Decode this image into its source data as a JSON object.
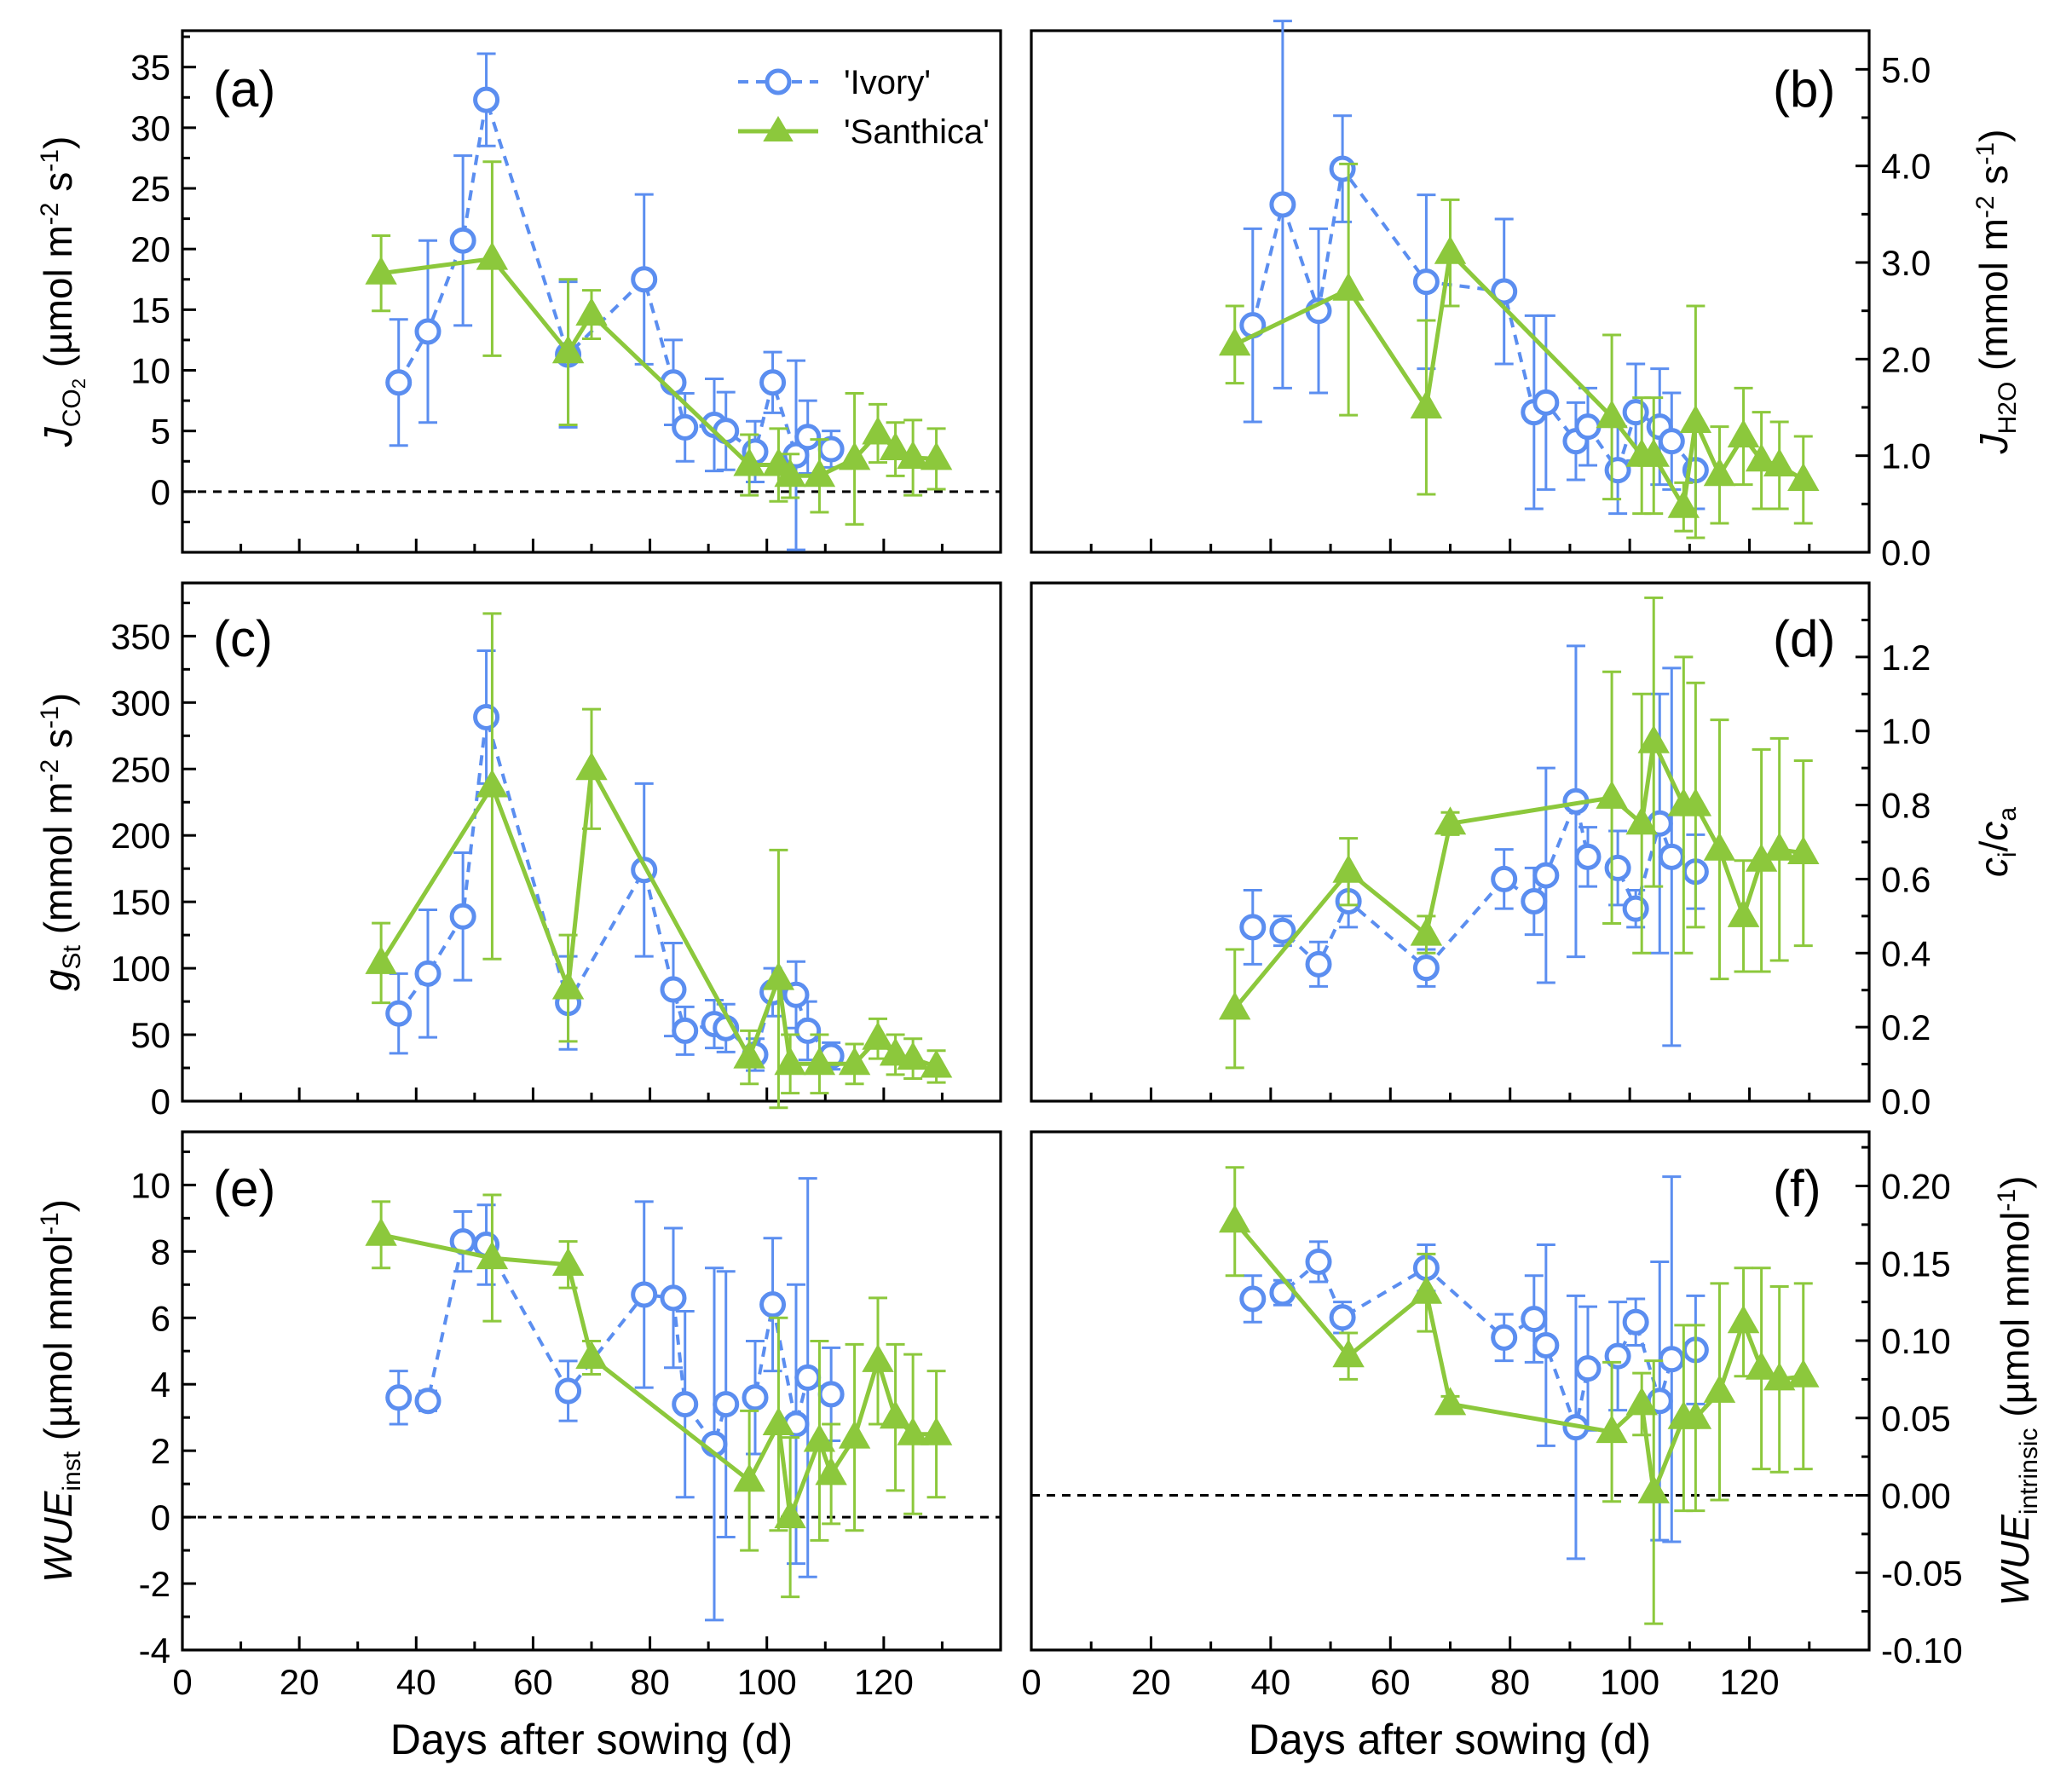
{
  "colors": {
    "ivory": "#5b8ef0",
    "santhica": "#8cc83c",
    "axis": "#000000"
  },
  "legend": {
    "ivory_label": "'Ivory'",
    "santhica_label": "'Santhica'"
  },
  "x_axis": {
    "label": "Days after sowing (d)",
    "range": [
      0,
      140
    ],
    "major_ticks": [
      0,
      20,
      40,
      60,
      80,
      100,
      120
    ]
  },
  "chart_data": [
    {
      "panel": "(a)",
      "type": "line",
      "ylabel": "J_CO2 (µmol m-2 s-1)",
      "yaxis_side": "left",
      "ylim": [
        -5,
        38
      ],
      "yticks": [
        0,
        5,
        10,
        15,
        20,
        25,
        30,
        35
      ],
      "zero_line": true,
      "series": [
        {
          "name": "'Ivory'",
          "x": [
            37,
            42,
            48,
            52,
            66,
            79,
            84,
            86,
            91,
            93,
            98,
            101,
            105,
            107,
            111
          ],
          "values": [
            9,
            13.2,
            20.7,
            32.3,
            11.3,
            17.5,
            9,
            5.3,
            5.5,
            5,
            3.3,
            9,
            3,
            4.5,
            3.5
          ],
          "errors": [
            5.2,
            7.5,
            7,
            3.8,
            6,
            7,
            3.5,
            2.8,
            3.8,
            3.2,
            2.5,
            2.5,
            7.8,
            3,
            1.5
          ]
        },
        {
          "name": "'Santhica'",
          "x": [
            34,
            53,
            66,
            70,
            97,
            102,
            104,
            109,
            115,
            119,
            122,
            125,
            129
          ],
          "values": [
            18,
            19.2,
            11.5,
            14.6,
            2.2,
            2.2,
            1.3,
            1.3,
            2.7,
            4.8,
            3.5,
            2.8,
            2.7
          ],
          "errors": [
            3.1,
            8,
            6,
            2,
            2.5,
            3,
            1.8,
            3,
            5.4,
            2.4,
            2.2,
            3.1,
            2.5
          ]
        }
      ]
    },
    {
      "panel": "(b)",
      "type": "line",
      "ylabel": "J_H2O (mmol m-2 s-1)",
      "yaxis_side": "right",
      "ylim": [
        0,
        5.4
      ],
      "yticks": [
        0.0,
        1.0,
        2.0,
        3.0,
        4.0,
        5.0
      ],
      "tick_decimals": 1,
      "series": [
        {
          "name": "'Ivory'",
          "x": [
            37,
            42,
            48,
            52,
            66,
            79,
            84,
            86,
            91,
            93,
            98,
            101,
            105,
            107,
            111
          ],
          "values": [
            2.35,
            3.6,
            2.5,
            3.97,
            2.8,
            2.7,
            1.45,
            1.55,
            1.15,
            1.3,
            0.85,
            1.45,
            1.3,
            1.15,
            0.85
          ],
          "errors": [
            1.0,
            1.9,
            0.85,
            0.55,
            0.9,
            0.75,
            1.0,
            0.9,
            0.4,
            0.4,
            0.45,
            0.5,
            0.6,
            0.5,
            0.4
          ]
        },
        {
          "name": "'Santhica'",
          "x": [
            34,
            53,
            66,
            70,
            97,
            102,
            104,
            109,
            111,
            115,
            119,
            122,
            125,
            129
          ],
          "values": [
            2.15,
            2.72,
            1.5,
            3.1,
            1.4,
            1.0,
            1.0,
            0.47,
            1.35,
            0.8,
            1.2,
            0.95,
            0.9,
            0.75
          ],
          "errors": [
            0.4,
            1.3,
            0.9,
            0.55,
            0.85,
            0.6,
            0.6,
            0.25,
            1.2,
            0.5,
            0.5,
            0.5,
            0.45,
            0.45
          ]
        }
      ]
    },
    {
      "panel": "(c)",
      "type": "line",
      "ylabel": "g_St (mmol m-2 s-1)",
      "yaxis_side": "left",
      "ylim": [
        0,
        390
      ],
      "yticks": [
        0,
        50,
        100,
        150,
        200,
        250,
        300,
        350
      ],
      "series": [
        {
          "name": "'Ivory'",
          "x": [
            37,
            42,
            48,
            52,
            66,
            79,
            84,
            86,
            91,
            93,
            98,
            101,
            105,
            107,
            111
          ],
          "values": [
            66,
            96,
            139,
            289,
            74,
            174,
            84,
            53,
            58,
            55,
            35,
            82,
            80,
            53,
            34
          ],
          "errors": [
            30,
            48,
            48,
            50,
            35,
            65,
            35,
            18,
            18,
            18,
            12,
            18,
            25,
            22,
            10
          ]
        },
        {
          "name": "'Santhica'",
          "x": [
            34,
            53,
            66,
            70,
            97,
            102,
            104,
            109,
            115,
            119,
            122,
            125,
            129
          ],
          "values": [
            104,
            237,
            85,
            250,
            33,
            92,
            28,
            28,
            28,
            47,
            35,
            32,
            26
          ],
          "errors": [
            30,
            130,
            40,
            45,
            20,
            97,
            22,
            22,
            15,
            15,
            15,
            15,
            12
          ]
        }
      ]
    },
    {
      "panel": "(d)",
      "type": "line",
      "ylabel": "ci/ca",
      "yaxis_side": "right",
      "ylim": [
        0,
        1.4
      ],
      "yticks": [
        0.0,
        0.2,
        0.4,
        0.6,
        0.8,
        1.0,
        1.2
      ],
      "tick_decimals": 1,
      "series": [
        {
          "name": "'Ivory'",
          "x": [
            37,
            42,
            48,
            53,
            66,
            79,
            84,
            86,
            91,
            93,
            98,
            101,
            105,
            107,
            111
          ],
          "values": [
            0.47,
            0.46,
            0.37,
            0.54,
            0.36,
            0.6,
            0.54,
            0.61,
            0.81,
            0.66,
            0.63,
            0.52,
            0.75,
            0.66,
            0.62
          ],
          "errors": [
            0.1,
            0.04,
            0.06,
            0.07,
            0.05,
            0.08,
            0.09,
            0.29,
            0.42,
            0.08,
            0.1,
            0.05,
            0.35,
            0.51,
            0.1
          ]
        },
        {
          "name": "'Santhica'",
          "x": [
            34,
            53,
            66,
            70,
            97,
            102,
            104,
            109,
            111,
            115,
            119,
            122,
            125,
            129
          ],
          "values": [
            0.25,
            0.62,
            0.45,
            0.75,
            0.82,
            0.75,
            0.97,
            0.8,
            0.8,
            0.68,
            0.5,
            0.65,
            0.68,
            0.67
          ],
          "errors": [
            0.16,
            0.09,
            0.05,
            0.03,
            0.34,
            0.35,
            0.39,
            0.4,
            0.33,
            0.35,
            0.15,
            0.3,
            0.3,
            0.25
          ]
        }
      ]
    },
    {
      "panel": "(e)",
      "type": "line",
      "ylabel": "WUE_inst (µmol mmol-1)",
      "yaxis_side": "left",
      "ylim": [
        -4,
        11.6
      ],
      "yticks": [
        -4,
        -2,
        0,
        2,
        4,
        6,
        8,
        10
      ],
      "zero_line": true,
      "series": [
        {
          "name": "'Ivory'",
          "x": [
            37,
            42,
            48,
            52,
            66,
            79,
            84,
            86,
            91,
            93,
            98,
            101,
            105,
            107,
            111
          ],
          "values": [
            3.6,
            3.5,
            8.3,
            8.2,
            3.8,
            6.7,
            6.6,
            3.4,
            2.2,
            3.4,
            3.6,
            6.4,
            2.8,
            4.2,
            3.7
          ],
          "errors": [
            0.8,
            0.3,
            0.9,
            1.2,
            0.9,
            2.8,
            2.1,
            2.8,
            5.3,
            4,
            1.7,
            2,
            4.2,
            6,
            1.4
          ]
        },
        {
          "name": "'Santhica'",
          "x": [
            34,
            53,
            66,
            70,
            97,
            102,
            104,
            109,
            111,
            115,
            119,
            122,
            125,
            129
          ],
          "values": [
            8.5,
            7.8,
            7.6,
            4.8,
            1.1,
            2.8,
            0,
            2.3,
            1.3,
            2.4,
            4.7,
            3,
            2.5,
            2.5
          ],
          "errors": [
            1,
            1.9,
            0.7,
            0.5,
            2.1,
            3.2,
            2.4,
            3,
            1.5,
            2.8,
            1.9,
            2.2,
            2.4,
            1.9
          ]
        }
      ]
    },
    {
      "panel": "(f)",
      "type": "line",
      "ylabel": "WUE_intrinsic (µmol mmol-1)",
      "yaxis_side": "right",
      "ylim": [
        -0.1,
        0.235
      ],
      "yticks": [
        -0.1,
        -0.05,
        0.0,
        0.05,
        0.1,
        0.15,
        0.2
      ],
      "tick_decimals": 2,
      "zero_line": true,
      "series": [
        {
          "name": "'Ivory'",
          "x": [
            37,
            42,
            48,
            52,
            66,
            79,
            84,
            86,
            91,
            93,
            98,
            101,
            105,
            107,
            111
          ],
          "values": [
            0.127,
            0.131,
            0.151,
            0.115,
            0.147,
            0.102,
            0.114,
            0.097,
            0.044,
            0.082,
            0.09,
            0.112,
            0.061,
            0.088,
            0.094
          ],
          "errors": [
            0.015,
            0.008,
            0.013,
            0.01,
            0.015,
            0.015,
            0.028,
            0.065,
            0.085,
            0.04,
            0.035,
            0.015,
            0.09,
            0.118,
            0.035
          ]
        },
        {
          "name": "'Santhica'",
          "x": [
            34,
            53,
            66,
            70,
            97,
            102,
            104,
            109,
            111,
            115,
            119,
            122,
            125,
            129
          ],
          "values": [
            0.177,
            0.09,
            0.131,
            0.059,
            0.041,
            0.059,
            0.002,
            0.05,
            0.05,
            0.067,
            0.112,
            0.082,
            0.075,
            0.077
          ],
          "errors": [
            0.035,
            0.015,
            0.025,
            0.005,
            0.045,
            0.02,
            0.085,
            0.06,
            0.06,
            0.07,
            0.035,
            0.065,
            0.06,
            0.06
          ]
        }
      ]
    }
  ],
  "panel_titles": {
    "a": {
      "label": "(a)",
      "ylabel_main": "J",
      "ylabel_sub": "CO",
      "ylabel_sub2": "2",
      "ylabel_unit_pre": " (µmol m",
      "ylabel_exp1": "-2",
      "ylabel_unit_mid": " s",
      "ylabel_exp2": "-1",
      "ylabel_unit_post": ")"
    },
    "b": {
      "label": "(b)",
      "ylabel_main": "J",
      "ylabel_sub": "H2O",
      "ylabel_unit_pre": " (mmol m",
      "ylabel_exp1": "-2",
      "ylabel_unit_mid": " s",
      "ylabel_exp2": "-1",
      "ylabel_unit_post": ")"
    },
    "c": {
      "label": "(c)",
      "ylabel_main": "g",
      "ylabel_sub": "St",
      "ylabel_unit_pre": " (mmol m",
      "ylabel_exp1": "-2",
      "ylabel_unit_mid": " s",
      "ylabel_exp2": "-1",
      "ylabel_unit_post": ")"
    },
    "d": {
      "label": "(d)",
      "ylabel_c1": "c",
      "ylabel_s1": "i",
      "ylabel_slash": "/",
      "ylabel_c2": "c",
      "ylabel_s2": "a"
    },
    "e": {
      "label": "(e)",
      "ylabel_main": "WUE",
      "ylabel_sub": "inst",
      "ylabel_unit_pre": " (µmol mmol",
      "ylabel_exp1": "-1",
      "ylabel_unit_post": ")"
    },
    "f": {
      "label": "(f)",
      "ylabel_main": "WUE",
      "ylabel_sub": "intrinsic",
      "ylabel_unit_pre": " (µmol mmol",
      "ylabel_exp1": "-1",
      "ylabel_unit_post": ")"
    }
  }
}
